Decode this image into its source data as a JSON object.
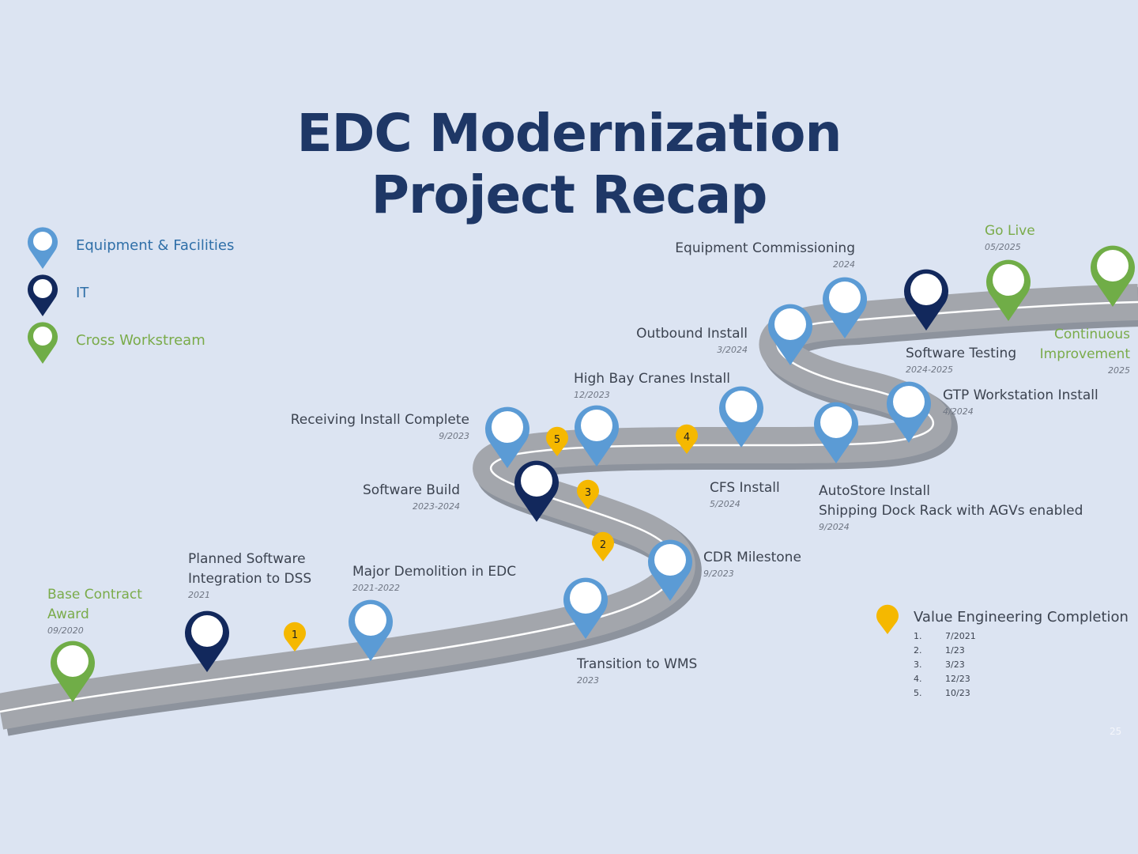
{
  "title": {
    "line1": "EDC Modernization",
    "line2": "Project Recap"
  },
  "legend": [
    {
      "label": "Equipment & Facilities",
      "color": "#5b9bd5"
    },
    {
      "label": "IT",
      "color": "#12285c"
    },
    {
      "label": "Cross Workstream",
      "color": "#70ad47"
    }
  ],
  "milestones": {
    "base_contract": {
      "name1": "Base Contract",
      "name2": "Award",
      "date": "09/2020"
    },
    "planned_software": {
      "name1": "Planned Software",
      "name2": "Integration to DSS",
      "date": "2021"
    },
    "major_demolition": {
      "name": "Major Demolition in EDC",
      "date": "2021-2022"
    },
    "transition_wms": {
      "name": "Transition to WMS",
      "date": "2023"
    },
    "cdr_milestone": {
      "name": "CDR Milestone",
      "date": "9/2023"
    },
    "software_build": {
      "name": "Software Build",
      "date": "2023-2024"
    },
    "receiving_install": {
      "name": "Receiving Install Complete",
      "date": "9/2023"
    },
    "high_bay_cranes": {
      "name": "High Bay Cranes Install",
      "date": "12/2023"
    },
    "cfs_install": {
      "name": "CFS Install",
      "date": "5/2024"
    },
    "autostore": {
      "name1": "AutoStore Install",
      "name2": "Shipping Dock Rack with AGVs enabled",
      "date": "9/2024"
    },
    "outbound_install": {
      "name": "Outbound Install",
      "date": "3/2024"
    },
    "equipment_commissioning": {
      "name": "Equipment Commissioning",
      "date": "2024"
    },
    "gtp_workstation": {
      "name": "GTP Workstation Install",
      "date": "4/2024"
    },
    "software_testing": {
      "name": "Software Testing",
      "date": "2024-2025"
    },
    "go_live": {
      "name": "Go Live",
      "date": "05/2025"
    },
    "continuous_improvement": {
      "name1": "Continuous",
      "name2": "Improvement",
      "date": "2025"
    }
  },
  "value_engineering": {
    "title": "Value Engineering Completion",
    "markers": [
      "1",
      "2",
      "3",
      "4",
      "5"
    ],
    "items": [
      {
        "num": "1.",
        "date": "7/2021"
      },
      {
        "num": "2.",
        "date": "1/23"
      },
      {
        "num": "3.",
        "date": "3/23"
      },
      {
        "num": "4.",
        "date": "12/23"
      },
      {
        "num": "5.",
        "date": "10/23"
      }
    ]
  },
  "page_number": "25"
}
